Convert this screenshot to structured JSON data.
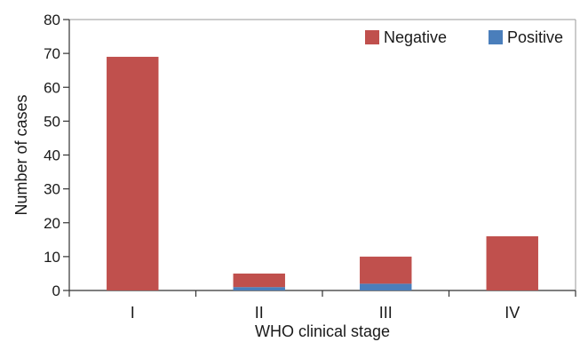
{
  "chart_data": {
    "type": "bar",
    "stacked": true,
    "categories": [
      "I",
      "II",
      "III",
      "IV"
    ],
    "series": [
      {
        "name": "Positive",
        "values": [
          0,
          1,
          2,
          0
        ],
        "color": "#4a7ebb"
      },
      {
        "name": "Negative",
        "values": [
          69,
          4,
          8,
          16
        ],
        "color": "#c0504d"
      }
    ],
    "legend_order": [
      "Negative",
      "Positive"
    ],
    "legend_position": "top-right",
    "xlabel": "WHO clinical stage",
    "ylabel": "Number of cases",
    "ylim": [
      0,
      80
    ],
    "yticks": [
      0,
      10,
      20,
      30,
      40,
      50,
      60,
      70,
      80
    ],
    "grid": false
  }
}
